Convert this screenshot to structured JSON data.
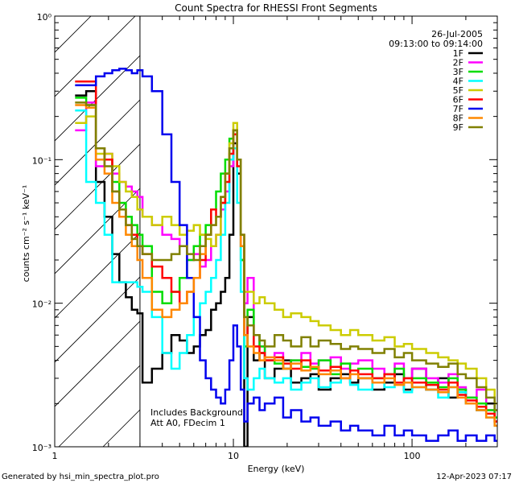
{
  "chart_data": {
    "type": "line",
    "title": "Count Spectra for RHESSI Front Segments",
    "xlabel": "Energy (keV)",
    "ylabel": "counts cm⁻² s⁻¹ keV⁻¹",
    "xscale": "log",
    "yscale": "log",
    "xlim": [
      1,
      300
    ],
    "ylim": [
      0.001,
      1
    ],
    "x_ticks": [
      "1",
      "10",
      "100"
    ],
    "y_ticks": [
      "10⁻³",
      "10⁻²",
      "10⁻¹",
      "10⁰"
    ],
    "attenuator_shade_limit_keV": 3,
    "date": "26-Jul-2005",
    "time_range": "09:13:00 to 09:14:00",
    "annotations": [
      "Includes Background",
      "Att A0, FDecim 1"
    ],
    "legend_position": "top-right",
    "series": [
      {
        "name": "1F",
        "color": "#000000",
        "x": [
          1.3,
          1.5,
          1.7,
          1.9,
          2.1,
          2.3,
          2.5,
          2.7,
          2.9,
          3.1,
          3.5,
          4.0,
          4.5,
          5.0,
          5.5,
          6.0,
          6.5,
          7.0,
          7.5,
          8.0,
          8.5,
          9.0,
          9.5,
          10.0,
          10.5,
          11.0,
          11.5,
          12,
          13,
          14,
          15,
          17,
          19,
          21,
          24,
          27,
          30,
          35,
          40,
          45,
          50,
          60,
          70,
          80,
          90,
          100,
          120,
          140,
          160,
          180,
          200,
          230,
          260,
          290
        ],
        "y": [
          0.28,
          0.3,
          0.07,
          0.04,
          0.022,
          0.014,
          0.011,
          0.009,
          0.0085,
          0.0028,
          0.0035,
          0.0045,
          0.006,
          0.0055,
          0.0045,
          0.005,
          0.006,
          0.0065,
          0.009,
          0.01,
          0.012,
          0.015,
          0.03,
          0.13,
          0.08,
          0.02,
          0.001,
          0.008,
          0.004,
          0.0045,
          0.003,
          0.0035,
          0.004,
          0.0028,
          0.003,
          0.0032,
          0.0025,
          0.003,
          0.0032,
          0.0028,
          0.003,
          0.0025,
          0.0028,
          0.0032,
          0.0025,
          0.0035,
          0.0025,
          0.003,
          0.0022,
          0.0025,
          0.002,
          0.0018,
          0.002,
          0.0015
        ]
      },
      {
        "name": "2F",
        "color": "#ff00ff",
        "x": [
          1.3,
          1.5,
          1.7,
          1.9,
          2.1,
          2.3,
          2.5,
          2.7,
          2.9,
          3.1,
          3.5,
          4.0,
          4.5,
          5.0,
          5.5,
          6.0,
          6.5,
          7.0,
          7.5,
          8.0,
          8.5,
          9.0,
          9.5,
          10.0,
          10.5,
          11.0,
          11.5,
          12,
          13,
          14,
          15,
          17,
          19,
          21,
          24,
          27,
          30,
          35,
          40,
          45,
          50,
          60,
          70,
          80,
          90,
          100,
          120,
          140,
          160,
          180,
          200,
          230,
          260,
          290
        ],
        "y": [
          0.16,
          0.25,
          0.09,
          0.11,
          0.08,
          0.07,
          0.065,
          0.06,
          0.055,
          0.04,
          0.035,
          0.03,
          0.028,
          0.025,
          0.02,
          0.022,
          0.018,
          0.02,
          0.025,
          0.03,
          0.045,
          0.06,
          0.09,
          0.15,
          0.1,
          0.03,
          0.01,
          0.015,
          0.006,
          0.005,
          0.004,
          0.0045,
          0.0035,
          0.004,
          0.0045,
          0.0038,
          0.004,
          0.0042,
          0.0035,
          0.0038,
          0.004,
          0.0035,
          0.0032,
          0.0038,
          0.003,
          0.0035,
          0.003,
          0.0028,
          0.0032,
          0.0026,
          0.0022,
          0.0025,
          0.0018,
          0.0015
        ]
      },
      {
        "name": "3F",
        "color": "#00dd00",
        "x": [
          1.3,
          1.5,
          1.7,
          1.9,
          2.1,
          2.3,
          2.5,
          2.7,
          2.9,
          3.1,
          3.5,
          4.0,
          4.5,
          5.0,
          5.5,
          6.0,
          6.5,
          7.0,
          7.5,
          8.0,
          8.5,
          9.0,
          9.5,
          10.0,
          10.5,
          11.0,
          11.5,
          12,
          13,
          14,
          15,
          17,
          19,
          21,
          24,
          27,
          30,
          35,
          40,
          45,
          50,
          60,
          70,
          80,
          90,
          100,
          120,
          140,
          160,
          180,
          200,
          230,
          260,
          290
        ],
        "y": [
          0.27,
          0.24,
          0.12,
          0.1,
          0.07,
          0.05,
          0.04,
          0.035,
          0.03,
          0.025,
          0.012,
          0.01,
          0.012,
          0.015,
          0.02,
          0.025,
          0.03,
          0.035,
          0.045,
          0.06,
          0.08,
          0.1,
          0.14,
          0.16,
          0.1,
          0.02,
          0.005,
          0.009,
          0.006,
          0.005,
          0.004,
          0.0038,
          0.0035,
          0.004,
          0.0036,
          0.0035,
          0.004,
          0.0032,
          0.0038,
          0.0034,
          0.0035,
          0.003,
          0.0032,
          0.0035,
          0.0028,
          0.003,
          0.0028,
          0.0026,
          0.003,
          0.0025,
          0.0022,
          0.002,
          0.0018,
          0.0016
        ]
      },
      {
        "name": "4F",
        "color": "#00ffff",
        "x": [
          1.3,
          1.5,
          1.7,
          1.9,
          2.1,
          2.3,
          2.5,
          2.7,
          2.9,
          3.1,
          3.5,
          4.0,
          4.5,
          5.0,
          5.5,
          6.0,
          6.5,
          7.0,
          7.5,
          8.0,
          8.5,
          9.0,
          9.5,
          10.0,
          10.5,
          11.0,
          11.5,
          12,
          13,
          14,
          15,
          17,
          19,
          21,
          24,
          27,
          30,
          35,
          40,
          45,
          50,
          60,
          70,
          80,
          90,
          100,
          120,
          140,
          160,
          180,
          200,
          230,
          260,
          290
        ],
        "y": [
          0.22,
          0.07,
          0.05,
          0.03,
          0.014,
          0.014,
          0.014,
          0.014,
          0.013,
          0.012,
          0.008,
          0.0045,
          0.0035,
          0.0045,
          0.006,
          0.008,
          0.01,
          0.012,
          0.015,
          0.02,
          0.03,
          0.05,
          0.1,
          0.12,
          0.05,
          0.012,
          0.003,
          0.0025,
          0.003,
          0.0035,
          0.003,
          0.0028,
          0.003,
          0.0025,
          0.0028,
          0.003,
          0.0026,
          0.0028,
          0.003,
          0.0027,
          0.0025,
          0.0028,
          0.0026,
          0.0028,
          0.0024,
          0.0026,
          0.0025,
          0.0022,
          0.0026,
          0.0024,
          0.002,
          0.0018,
          0.0016,
          0.0014
        ]
      },
      {
        "name": "5F",
        "color": "#cccc00",
        "x": [
          1.3,
          1.5,
          1.7,
          1.9,
          2.1,
          2.3,
          2.5,
          2.7,
          2.9,
          3.1,
          3.5,
          4.0,
          4.5,
          5.0,
          5.5,
          6.0,
          6.5,
          7.0,
          7.5,
          8.0,
          8.5,
          9.0,
          9.5,
          10.0,
          10.5,
          11.0,
          11.5,
          12,
          13,
          14,
          15,
          17,
          19,
          21,
          24,
          27,
          30,
          35,
          40,
          45,
          50,
          60,
          70,
          80,
          90,
          100,
          120,
          140,
          160,
          180,
          200,
          230,
          260,
          290
        ],
        "y": [
          0.18,
          0.2,
          0.11,
          0.11,
          0.09,
          0.07,
          0.06,
          0.055,
          0.045,
          0.04,
          0.035,
          0.04,
          0.035,
          0.03,
          0.032,
          0.035,
          0.03,
          0.028,
          0.025,
          0.03,
          0.05,
          0.08,
          0.13,
          0.18,
          0.1,
          0.03,
          0.012,
          0.012,
          0.01,
          0.011,
          0.01,
          0.009,
          0.008,
          0.0085,
          0.008,
          0.0075,
          0.007,
          0.0065,
          0.006,
          0.0065,
          0.006,
          0.0055,
          0.0058,
          0.005,
          0.0052,
          0.0048,
          0.0045,
          0.0042,
          0.004,
          0.0038,
          0.0035,
          0.003,
          0.0025,
          0.002
        ]
      },
      {
        "name": "6F",
        "color": "#ff0000",
        "x": [
          1.3,
          1.5,
          1.7,
          1.9,
          2.1,
          2.3,
          2.5,
          2.7,
          2.9,
          3.1,
          3.5,
          4.0,
          4.5,
          5.0,
          5.5,
          6.0,
          6.5,
          7.0,
          7.5,
          8.0,
          8.5,
          9.0,
          9.5,
          10.0,
          10.5,
          11.0,
          11.5,
          12,
          13,
          14,
          15,
          17,
          19,
          21,
          24,
          27,
          30,
          35,
          40,
          45,
          50,
          60,
          70,
          80,
          90,
          100,
          120,
          140,
          160,
          180,
          200,
          230,
          260,
          290
        ],
        "y": [
          0.35,
          0.35,
          0.12,
          0.1,
          0.06,
          0.045,
          0.035,
          0.03,
          0.025,
          0.022,
          0.018,
          0.015,
          0.012,
          0.01,
          0.012,
          0.015,
          0.02,
          0.03,
          0.045,
          0.04,
          0.05,
          0.07,
          0.11,
          0.15,
          0.09,
          0.025,
          0.006,
          0.007,
          0.005,
          0.0045,
          0.004,
          0.0042,
          0.0038,
          0.0035,
          0.004,
          0.0036,
          0.0034,
          0.0036,
          0.003,
          0.0034,
          0.0032,
          0.003,
          0.0032,
          0.0028,
          0.003,
          0.0028,
          0.0027,
          0.0025,
          0.0028,
          0.0023,
          0.0021,
          0.0019,
          0.0017,
          0.0015
        ]
      },
      {
        "name": "7F",
        "color": "#0000ee",
        "x": [
          1.3,
          1.5,
          1.7,
          1.9,
          2.1,
          2.3,
          2.5,
          2.7,
          2.9,
          3.1,
          3.5,
          4.0,
          4.5,
          5.0,
          5.5,
          6.0,
          6.5,
          7.0,
          7.5,
          8.0,
          8.5,
          9.0,
          9.5,
          10.0,
          10.5,
          11.0,
          11.5,
          12,
          13,
          14,
          15,
          17,
          19,
          21,
          24,
          27,
          30,
          35,
          40,
          45,
          50,
          60,
          70,
          80,
          90,
          100,
          120,
          140,
          160,
          180,
          200,
          230,
          260,
          290
        ],
        "y": [
          0.33,
          0.33,
          0.38,
          0.4,
          0.42,
          0.43,
          0.42,
          0.4,
          0.42,
          0.38,
          0.3,
          0.15,
          0.07,
          0.035,
          0.015,
          0.008,
          0.004,
          0.003,
          0.0025,
          0.0022,
          0.002,
          0.0025,
          0.004,
          0.007,
          0.005,
          0.0025,
          0.0015,
          0.002,
          0.0022,
          0.0018,
          0.002,
          0.0022,
          0.0016,
          0.0018,
          0.0015,
          0.0016,
          0.0014,
          0.0015,
          0.0013,
          0.0014,
          0.0013,
          0.0012,
          0.0014,
          0.0012,
          0.0013,
          0.0012,
          0.0011,
          0.0012,
          0.0013,
          0.0011,
          0.0012,
          0.0011,
          0.0012,
          0.0011
        ]
      },
      {
        "name": "8F",
        "color": "#ff8800",
        "x": [
          1.3,
          1.5,
          1.7,
          1.9,
          2.1,
          2.3,
          2.5,
          2.7,
          2.9,
          3.1,
          3.5,
          4.0,
          4.5,
          5.0,
          5.5,
          6.0,
          6.5,
          7.0,
          7.5,
          8.0,
          8.5,
          9.0,
          9.5,
          10.0,
          10.5,
          11.0,
          11.5,
          12,
          13,
          14,
          15,
          17,
          19,
          21,
          24,
          27,
          30,
          35,
          40,
          45,
          50,
          60,
          70,
          80,
          90,
          100,
          120,
          140,
          160,
          180,
          200,
          230,
          260,
          290
        ],
        "y": [
          0.24,
          0.23,
          0.1,
          0.08,
          0.05,
          0.04,
          0.03,
          0.025,
          0.02,
          0.015,
          0.009,
          0.008,
          0.009,
          0.01,
          0.012,
          0.015,
          0.022,
          0.03,
          0.035,
          0.04,
          0.055,
          0.08,
          0.12,
          0.16,
          0.1,
          0.025,
          0.006,
          0.005,
          0.0045,
          0.004,
          0.0042,
          0.004,
          0.0035,
          0.0038,
          0.0034,
          0.0036,
          0.0032,
          0.0034,
          0.003,
          0.0032,
          0.003,
          0.0028,
          0.003,
          0.0027,
          0.0028,
          0.0026,
          0.0025,
          0.0024,
          0.0026,
          0.0022,
          0.002,
          0.0018,
          0.0016,
          0.0014
        ]
      },
      {
        "name": "9F",
        "color": "#808000",
        "x": [
          1.3,
          1.5,
          1.7,
          1.9,
          2.1,
          2.3,
          2.5,
          2.7,
          2.9,
          3.1,
          3.5,
          4.0,
          4.5,
          5.0,
          5.5,
          6.0,
          6.5,
          7.0,
          7.5,
          8.0,
          8.5,
          9.0,
          9.5,
          10.0,
          10.5,
          11.0,
          11.5,
          12,
          13,
          14,
          15,
          17,
          19,
          21,
          24,
          27,
          30,
          35,
          40,
          45,
          50,
          60,
          70,
          80,
          90,
          100,
          120,
          140,
          160,
          180,
          200,
          230,
          260,
          290
        ],
        "y": [
          0.25,
          0.24,
          0.12,
          0.09,
          0.06,
          0.045,
          0.035,
          0.028,
          0.025,
          0.022,
          0.02,
          0.02,
          0.022,
          0.025,
          0.022,
          0.02,
          0.025,
          0.03,
          0.035,
          0.04,
          0.055,
          0.08,
          0.12,
          0.16,
          0.1,
          0.03,
          0.008,
          0.007,
          0.006,
          0.0055,
          0.005,
          0.006,
          0.0055,
          0.005,
          0.0058,
          0.005,
          0.0055,
          0.0052,
          0.0048,
          0.005,
          0.0048,
          0.0045,
          0.0048,
          0.0042,
          0.0045,
          0.004,
          0.0038,
          0.0036,
          0.0038,
          0.0032,
          0.003,
          0.0026,
          0.0022,
          0.0018
        ]
      }
    ]
  },
  "footer": {
    "generated_by": "Generated by hsi_min_spectra_plot.pro",
    "timestamp": "12-Apr-2023 07:17"
  }
}
